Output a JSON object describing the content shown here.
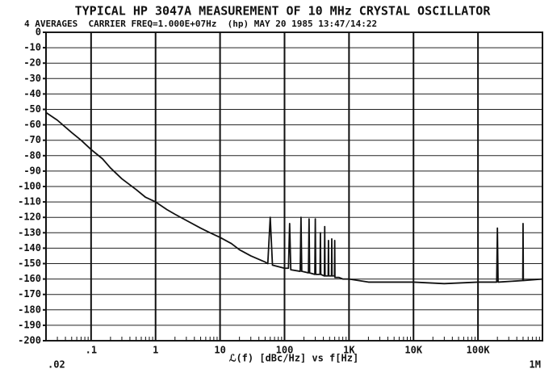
{
  "chart_data": {
    "type": "line",
    "title": "TYPICAL HP 3047A MEASUREMENT OF 10 MHz CRYSTAL OSCILLATOR",
    "subtitle": "4 AVERAGES  CARRIER FREQ=1.000E+07Hz  (hp) MAY 20 1985 13:47/14:22",
    "xlabel": "ℒ(f) [dBc/Hz] vs f[Hz]",
    "log_x": true,
    "grid": true,
    "color": "#111111",
    "xlim": [
      0.02,
      1000000
    ],
    "ylim": [
      -200,
      0
    ],
    "xticks": [
      {
        "value": 0.02,
        "label": ".02"
      },
      {
        "value": 0.1,
        "label": ".1"
      },
      1,
      10,
      100,
      {
        "value": 1000,
        "label": "1K"
      },
      {
        "value": 10000,
        "label": "10K"
      },
      {
        "value": 100000,
        "label": "100K"
      },
      {
        "value": 1000000,
        "label": "1M"
      }
    ],
    "yticks": [
      0,
      -10,
      -20,
      -30,
      -40,
      -50,
      -60,
      -70,
      -80,
      -90,
      -100,
      -110,
      -120,
      -130,
      -140,
      -150,
      -160,
      -170,
      -180,
      -190,
      -200
    ],
    "x": [
      0.02,
      0.03,
      0.05,
      0.07,
      0.1,
      0.15,
      0.2,
      0.3,
      0.5,
      0.7,
      1,
      1.5,
      2,
      3,
      5,
      7,
      10,
      15,
      20,
      30,
      50,
      55,
      60,
      65,
      100,
      115,
      120,
      125,
      175,
      180,
      185,
      235,
      240,
      245,
      295,
      300,
      305,
      355,
      360,
      365,
      415,
      420,
      425,
      475,
      480,
      485,
      535,
      540,
      545,
      595,
      600,
      605,
      700,
      800,
      1000,
      2000,
      5000,
      10000,
      30000,
      100000,
      195000,
      200000,
      205000,
      495000,
      500000,
      505000,
      1000000
    ],
    "values": [
      -52,
      -57,
      -65,
      -70,
      -76,
      -82,
      -88,
      -95,
      -102,
      -107,
      -110,
      -115,
      -118,
      -122,
      -127,
      -130,
      -133,
      -137,
      -141,
      -145,
      -149,
      -150,
      -120,
      -151,
      -153,
      -153,
      -124,
      -154,
      -155,
      -120,
      -155,
      -156,
      -121,
      -156,
      -157,
      -121,
      -157,
      -157,
      -130,
      -157,
      -158,
      -126,
      -158,
      -158,
      -135,
      -158,
      -158,
      -134,
      -158,
      -158,
      -135,
      -159,
      -159,
      -160,
      -160,
      -162,
      -162,
      -162,
      -163,
      -162,
      -162,
      -127,
      -162,
      -161,
      -124,
      -161,
      -160
    ]
  }
}
